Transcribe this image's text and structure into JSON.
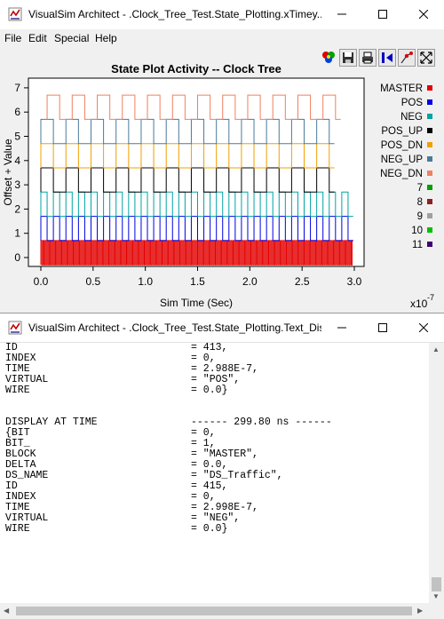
{
  "window1": {
    "title": "VisualSim Architect - .Clock_Tree_Test.State_Plotting.xTimey...",
    "menu": [
      "File",
      "Edit",
      "Special",
      "Help"
    ],
    "toolbar_icons": [
      "color-palette-icon",
      "save-icon",
      "print-icon",
      "reset-axes-icon",
      "fill-icon",
      "zoom-fit-icon"
    ]
  },
  "window2": {
    "title": "VisualSim Architect - .Clock_Tree_Test.State_Plotting.Text_Dis...",
    "lines": [
      {
        "key": "ID",
        "value": "= 413,"
      },
      {
        "key": "INDEX",
        "value": "= 0,"
      },
      {
        "key": "TIME",
        "value": "= 2.988E-7,"
      },
      {
        "key": "VIRTUAL",
        "value": "= \"POS\","
      },
      {
        "key": "WIRE",
        "value": "= 0.0}"
      },
      {
        "key": "",
        "value": ""
      },
      {
        "key": "",
        "value": ""
      },
      {
        "key": "DISPLAY AT TIME",
        "value": "------ 299.80 ns ------"
      },
      {
        "key": "{BIT",
        "value": "= 0,"
      },
      {
        "key": "BIT_",
        "value": "= 1,"
      },
      {
        "key": "BLOCK",
        "value": "= \"MASTER\","
      },
      {
        "key": "DELTA",
        "value": "= 0.0,"
      },
      {
        "key": "DS_NAME",
        "value": "= \"DS_Traffic\","
      },
      {
        "key": "ID",
        "value": "= 415,"
      },
      {
        "key": "INDEX",
        "value": "= 0,"
      },
      {
        "key": "TIME",
        "value": "= 2.998E-7,"
      },
      {
        "key": "VIRTUAL",
        "value": "= \"NEG\","
      },
      {
        "key": "WIRE",
        "value": "= 0.0}"
      }
    ]
  },
  "chart_data": {
    "type": "line",
    "title": "State Plot Activity -- Clock Tree",
    "xlabel": "Sim Time (Sec)",
    "ylabel": "Offset + Value",
    "x_exponent": "x10",
    "x_exponent_power": "-7",
    "xlim": [
      0.0,
      3.0
    ],
    "ylim": [
      -0.3,
      7.3
    ],
    "x_ticks": [
      "0.0",
      "0.5",
      "1.0",
      "1.5",
      "2.0",
      "2.5",
      "3.0"
    ],
    "y_ticks": [
      "0",
      "1",
      "2",
      "3",
      "4",
      "5",
      "6",
      "7"
    ],
    "legend_position": "right",
    "legend": [
      {
        "name": "MASTER",
        "color": "#e30000"
      },
      {
        "name": "POS",
        "color": "#0000e3"
      },
      {
        "name": "NEG",
        "color": "#00a3a3"
      },
      {
        "name": "POS_UP",
        "color": "#000000"
      },
      {
        "name": "POS_DN",
        "color": "#f0a000"
      },
      {
        "name": "NEG_UP",
        "color": "#4a7a9a"
      },
      {
        "name": "NEG_DN",
        "color": "#f08060"
      },
      {
        "name": "7",
        "color": "#00a000"
      },
      {
        "name": "8",
        "color": "#902020"
      },
      {
        "name": "9",
        "color": "#a0a0a0"
      },
      {
        "name": "10",
        "color": "#00c000"
      },
      {
        "name": "11",
        "color": "#400070"
      }
    ],
    "series": [
      {
        "name": "MASTER",
        "color": "#e30000",
        "offset": 0,
        "period": 0.02,
        "start": 0.0,
        "end": 2.99
      },
      {
        "name": "POS",
        "color": "#0000e3",
        "offset": 1,
        "period": 0.12,
        "start": 0.0,
        "end": 2.99
      },
      {
        "name": "NEG",
        "color": "#00a3a3",
        "offset": 2,
        "period": 0.12,
        "start": 0.0,
        "end": 2.99
      },
      {
        "name": "POS_UP",
        "color": "#000000",
        "offset": 3,
        "period": 0.24,
        "start": 0.0,
        "end": 2.81
      },
      {
        "name": "POS_DN",
        "color": "#f0a000",
        "offset": 4,
        "period": 0.24,
        "start": 0.0,
        "end": 2.81
      },
      {
        "name": "NEG_UP",
        "color": "#4a7a9a",
        "offset": 5,
        "period": 0.24,
        "start": 0.0,
        "end": 2.81
      },
      {
        "name": "NEG_DN",
        "color": "#f08060",
        "offset": 6,
        "period": 0.24,
        "start": 0.06,
        "end": 2.87
      }
    ]
  }
}
